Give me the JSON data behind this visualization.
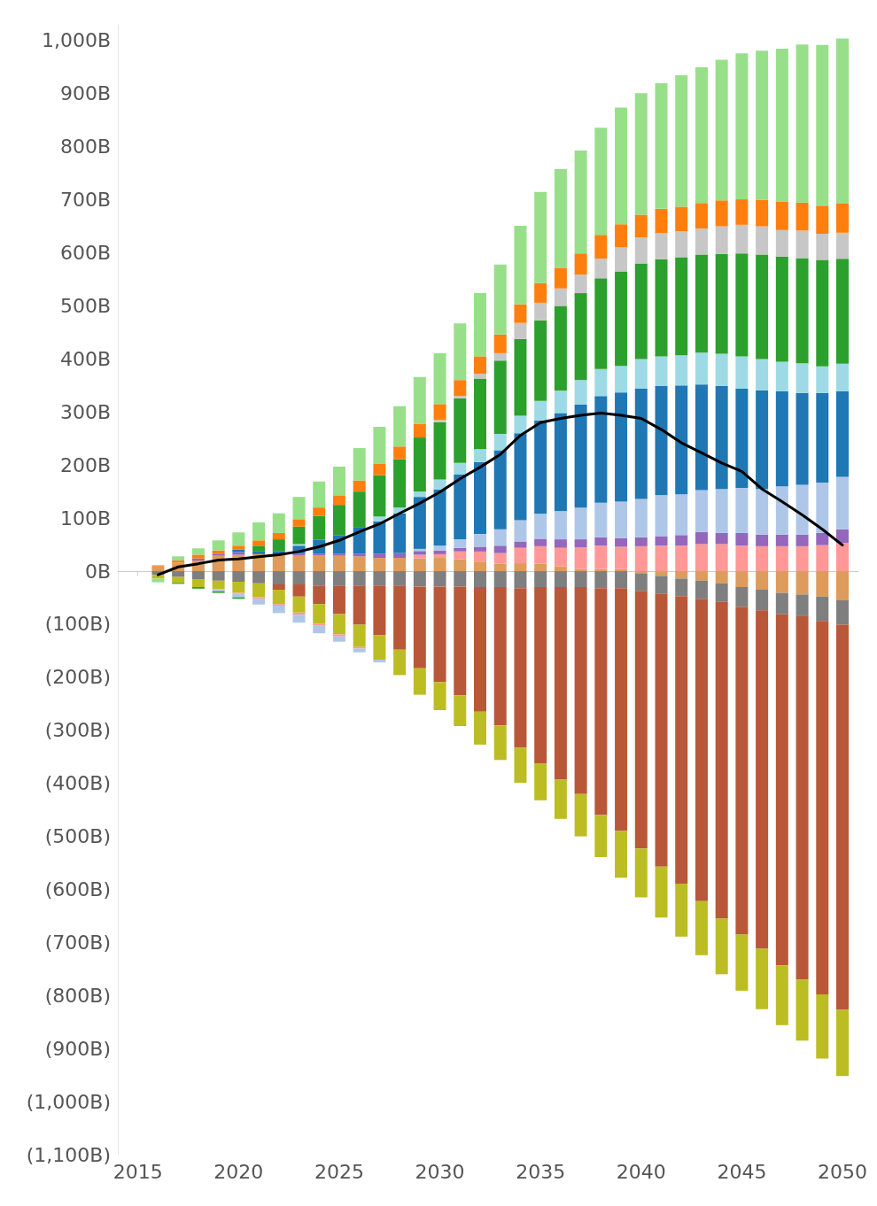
{
  "chart_data": {
    "type": "bar",
    "stacked": true,
    "marker": "none",
    "line_style": "solid",
    "x": [
      2016,
      2017,
      2018,
      2019,
      2020,
      2021,
      2022,
      2023,
      2024,
      2025,
      2026,
      2027,
      2028,
      2029,
      2030,
      2031,
      2032,
      2033,
      2034,
      2035,
      2036,
      2037,
      2038,
      2039,
      2040,
      2041,
      2042,
      2043,
      2044,
      2045,
      2046,
      2047,
      2048,
      2049,
      2050
    ],
    "xlim": [
      2014,
      2050.8
    ],
    "xticks": [
      2015,
      2020,
      2025,
      2030,
      2035,
      2040,
      2045,
      2050
    ],
    "ylim": [
      -1100,
      1030
    ],
    "yticks": [
      {
        "value": -1100,
        "label": "(1,100B)"
      },
      {
        "value": -1000,
        "label": "(1,000B)"
      },
      {
        "value": -900,
        "label": "(900B)"
      },
      {
        "value": -800,
        "label": "(800B)"
      },
      {
        "value": -700,
        "label": "(700B)"
      },
      {
        "value": -600,
        "label": "(600B)"
      },
      {
        "value": -500,
        "label": "(500B)"
      },
      {
        "value": -400,
        "label": "(400B)"
      },
      {
        "value": -300,
        "label": "(300B)"
      },
      {
        "value": -200,
        "label": "(200B)"
      },
      {
        "value": -100,
        "label": "(100B)"
      },
      {
        "value": 0,
        "label": "0B"
      },
      {
        "value": 100,
        "label": "100B"
      },
      {
        "value": 200,
        "label": "200B"
      },
      {
        "value": 300,
        "label": "300B"
      },
      {
        "value": 400,
        "label": "400B"
      },
      {
        "value": 500,
        "label": "500B"
      },
      {
        "value": 600,
        "label": "600B"
      },
      {
        "value": 700,
        "label": "700B"
      },
      {
        "value": 800,
        "label": "800B"
      },
      {
        "value": 900,
        "label": "900B"
      },
      {
        "value": 1000,
        "label": "1,000B"
      }
    ],
    "series": [
      {
        "color": "#dd9b5c",
        "values": [
          9,
          16,
          20,
          29,
          31,
          32,
          30,
          30,
          30,
          29,
          28,
          25,
          25,
          24,
          25,
          22,
          18,
          14,
          15,
          14,
          9,
          4,
          4,
          4,
          -4,
          -9,
          -14,
          -18,
          -23,
          -30,
          -35,
          -41,
          -44,
          -48,
          -55
        ]
      },
      {
        "color": "#7f7f7f",
        "values": [
          -7,
          -11,
          -16,
          -18,
          -20,
          -23,
          -25,
          -25,
          -28,
          -28,
          -28,
          -28,
          -28,
          -29,
          -29,
          -29,
          -30,
          -30,
          -32,
          -30,
          -30,
          -30,
          -32,
          -32,
          -33,
          -33,
          -33,
          -34,
          -35,
          -37,
          -39,
          -40,
          -41,
          -46,
          -46
        ]
      },
      {
        "color": "#b95838",
        "values": [
          null,
          null,
          null,
          null,
          null,
          null,
          -10,
          -23,
          -34,
          -53,
          -73,
          -93,
          -120,
          -154,
          -180,
          -205,
          -235,
          -261,
          -301,
          -333,
          -363,
          -390,
          -428,
          -458,
          -486,
          -515,
          -542,
          -570,
          -597,
          -618,
          -638,
          -662,
          -685,
          -704,
          -726
        ]
      },
      {
        "color": "#bcbd22",
        "values": [
          -7,
          -11,
          -14,
          -16,
          -21,
          -26,
          -27,
          -30,
          -37,
          -38,
          -42,
          -46,
          -48,
          -50,
          -53,
          -58,
          -62,
          -65,
          -66,
          -69,
          -74,
          -80,
          -79,
          -88,
          -92,
          -96,
          -100,
          -102,
          -105,
          -106,
          -114,
          -113,
          -115,
          -121,
          -125
        ]
      },
      {
        "color": "#ff9896",
        "values": [
          null,
          null,
          null,
          null,
          -2,
          -3,
          -3,
          -4,
          -4,
          -4,
          -3,
          null,
          null,
          7,
          7,
          15,
          19,
          20,
          29,
          33,
          35,
          41,
          44,
          42,
          47,
          48,
          48,
          51,
          51,
          48,
          47,
          47,
          47,
          49,
          53
        ]
      },
      {
        "color": "#9467bd",
        "values": [
          null,
          null,
          4,
          4,
          5,
          null,
          null,
          3,
          3,
          4,
          5,
          8,
          9,
          7,
          7,
          7,
          9,
          14,
          12,
          14,
          16,
          15,
          16,
          16,
          17,
          18,
          20,
          23,
          21,
          24,
          22,
          22,
          22,
          23,
          26
        ]
      },
      {
        "color": "#aec7e8",
        "values": [
          null,
          null,
          null,
          -4,
          -6,
          -11,
          -14,
          -15,
          -14,
          -10,
          -7,
          -5,
          null,
          4,
          9,
          16,
          24,
          31,
          40,
          47,
          53,
          60,
          65,
          69,
          72,
          77,
          77,
          79,
          83,
          85,
          86,
          91,
          94,
          95,
          99
        ]
      },
      {
        "color": "#1f77b4",
        "values": [
          null,
          null,
          null,
          null,
          5,
          5,
          8,
          15,
          26,
          35,
          49,
          61,
          75,
          98,
          106,
          122,
          136,
          149,
          164,
          176,
          185,
          194,
          201,
          206,
          208,
          206,
          205,
          199,
          194,
          187,
          186,
          179,
          173,
          169,
          161
        ]
      },
      {
        "color": "#9edae5",
        "values": [
          null,
          null,
          null,
          null,
          null,
          null,
          null,
          3,
          null,
          null,
          null,
          9,
          11,
          10,
          19,
          22,
          24,
          31,
          33,
          37,
          42,
          46,
          51,
          50,
          56,
          56,
          57,
          60,
          61,
          61,
          59,
          56,
          56,
          50,
          52
        ]
      },
      {
        "color": "#2ca02c",
        "values": [
          null,
          -2,
          -3,
          -3,
          -3,
          11,
          22,
          33,
          45,
          57,
          68,
          78,
          91,
          102,
          108,
          122,
          133,
          138,
          145,
          152,
          160,
          164,
          171,
          178,
          180,
          183,
          185,
          185,
          188,
          194,
          197,
          198,
          198,
          201,
          198
        ]
      },
      {
        "color": "#c7c7c7",
        "values": [
          null,
          null,
          null,
          null,
          null,
          null,
          null,
          null,
          null,
          null,
          null,
          null,
          null,
          null,
          4,
          4,
          9,
          14,
          30,
          33,
          33,
          35,
          37,
          46,
          49,
          49,
          49,
          49,
          52,
          54,
          53,
          50,
          52,
          49,
          49
        ]
      },
      {
        "color": "#ff7f0e",
        "values": [
          2,
          4,
          7,
          6,
          7,
          10,
          12,
          14,
          16,
          18,
          21,
          22,
          24,
          26,
          30,
          30,
          33,
          35,
          35,
          37,
          39,
          40,
          45,
          43,
          43,
          46,
          46,
          48,
          49,
          48,
          50,
          54,
          53,
          53,
          55
        ]
      },
      {
        "color": "#98df8a",
        "values": [
          -7,
          8,
          12,
          19,
          25,
          34,
          37,
          42,
          49,
          54,
          61,
          69,
          76,
          88,
          96,
          107,
          119,
          132,
          148,
          172,
          186,
          194,
          202,
          220,
          229,
          237,
          248,
          256,
          265,
          275,
          281,
          288,
          298,
          303,
          311
        ]
      },
      {
        "type": "line",
        "color": "#000000",
        "values": [
          -7,
          8,
          14,
          21,
          23,
          27,
          31,
          37,
          46,
          58,
          74,
          89,
          109,
          128,
          149,
          174,
          196,
          220,
          256,
          280,
          288,
          294,
          298,
          294,
          288,
          267,
          242,
          223,
          204,
          188,
          155,
          131,
          106,
          79,
          49
        ]
      }
    ]
  }
}
